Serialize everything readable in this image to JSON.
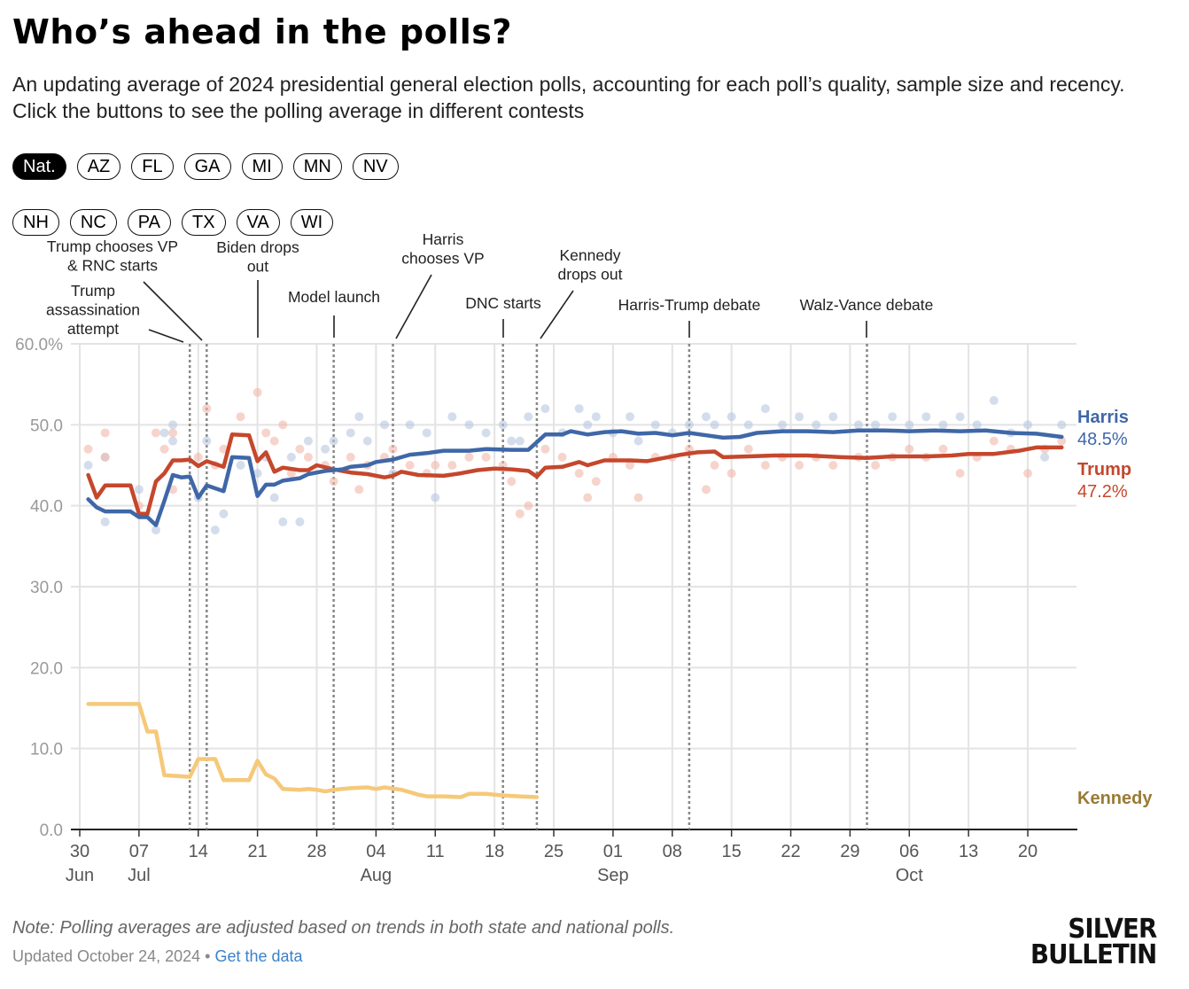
{
  "header": {
    "title": "Who’s ahead in the polls?",
    "subtitle": "An updating average of 2024 presidential general election polls, accounting for each poll’s quality, sample size and recency. Click the buttons to see the polling average in different contests"
  },
  "contest_buttons": {
    "selected": "Nat.",
    "row1": [
      "Nat.",
      "AZ",
      "FL",
      "GA",
      "MI",
      "MN",
      "NV"
    ],
    "row2": [
      "NH",
      "NC",
      "PA",
      "TX",
      "VA",
      "WI"
    ]
  },
  "footer": {
    "note": "Note: Polling averages are adjusted based on trends in both state and national polls.",
    "updated": "Updated October 24, 2024",
    "separator": "•",
    "link": "Get the data",
    "logo_text": "SILVER BULLETIN"
  },
  "chart_data": {
    "type": "line",
    "title": "",
    "xlabel": "",
    "ylabel": "",
    "ylim": [
      0,
      60
    ],
    "xlim": [
      "2024-06-30",
      "2024-10-26"
    ],
    "y_ticks": [
      "0.0",
      "10.0",
      "20.0",
      "30.0",
      "40.0",
      "50.0",
      "60.0%"
    ],
    "y_tick_values": [
      0,
      10,
      20,
      30,
      40,
      50,
      60
    ],
    "x_ticks": [
      {
        "date": "2024-06-30",
        "day": "30",
        "month": "Jun"
      },
      {
        "date": "2024-07-07",
        "day": "07",
        "month": "Jul"
      },
      {
        "date": "2024-07-14",
        "day": "14",
        "month": ""
      },
      {
        "date": "2024-07-21",
        "day": "21",
        "month": ""
      },
      {
        "date": "2024-07-28",
        "day": "28",
        "month": ""
      },
      {
        "date": "2024-08-04",
        "day": "04",
        "month": "Aug"
      },
      {
        "date": "2024-08-11",
        "day": "11",
        "month": ""
      },
      {
        "date": "2024-08-18",
        "day": "18",
        "month": ""
      },
      {
        "date": "2024-08-25",
        "day": "25",
        "month": ""
      },
      {
        "date": "2024-09-01",
        "day": "01",
        "month": "Sep"
      },
      {
        "date": "2024-09-08",
        "day": "08",
        "month": ""
      },
      {
        "date": "2024-09-15",
        "day": "15",
        "month": ""
      },
      {
        "date": "2024-09-22",
        "day": "22",
        "month": ""
      },
      {
        "date": "2024-09-29",
        "day": "29",
        "month": ""
      },
      {
        "date": "2024-10-06",
        "day": "06",
        "month": "Oct"
      },
      {
        "date": "2024-10-13",
        "day": "13",
        "month": ""
      },
      {
        "date": "2024-10-20",
        "day": "20",
        "month": ""
      }
    ],
    "grid": true,
    "colors": {
      "Harris": "#3f67a8",
      "Trump": "#c5472c",
      "Kennedy": "#f5c97a",
      "Kennedy_label": "#9a7a35",
      "Harris_dots": "#b7c7e0",
      "Trump_dots": "#f0b8aa"
    },
    "events": [
      {
        "date": "2024-07-13",
        "label": "Trump assassination attempt"
      },
      {
        "date": "2024-07-15",
        "label": "Trump chooses VP & RNC starts"
      },
      {
        "date": "2024-07-21",
        "label": "Biden drops out"
      },
      {
        "date": "2024-07-30",
        "label": "Model launch"
      },
      {
        "date": "2024-08-06",
        "label": "Harris chooses VP"
      },
      {
        "date": "2024-08-19",
        "label": "DNC starts"
      },
      {
        "date": "2024-08-23",
        "label": "Kennedy drops out"
      },
      {
        "date": "2024-09-10",
        "label": "Harris-Trump debate"
      },
      {
        "date": "2024-10-01",
        "label": "Walz-Vance debate"
      }
    ],
    "series": [
      {
        "name": "Harris",
        "end_label": "48.5%",
        "points": [
          [
            "2024-07-01",
            40.8
          ],
          [
            "2024-07-02",
            39.8
          ],
          [
            "2024-07-03",
            39.3
          ],
          [
            "2024-07-06",
            39.3
          ],
          [
            "2024-07-07",
            38.6
          ],
          [
            "2024-07-08",
            38.6
          ],
          [
            "2024-07-09",
            37.6
          ],
          [
            "2024-07-10",
            40.6
          ],
          [
            "2024-07-11",
            43.8
          ],
          [
            "2024-07-12",
            43.5
          ],
          [
            "2024-07-13",
            43.6
          ],
          [
            "2024-07-14",
            41.0
          ],
          [
            "2024-07-15",
            42.5
          ],
          [
            "2024-07-17",
            41.8
          ],
          [
            "2024-07-18",
            46.0
          ],
          [
            "2024-07-20",
            45.9
          ],
          [
            "2024-07-21",
            41.2
          ],
          [
            "2024-07-22",
            42.6
          ],
          [
            "2024-07-23",
            42.6
          ],
          [
            "2024-07-24",
            43.1
          ],
          [
            "2024-07-26",
            43.4
          ],
          [
            "2024-07-27",
            43.9
          ],
          [
            "2024-07-29",
            44.3
          ],
          [
            "2024-07-31",
            44.5
          ],
          [
            "2024-08-01",
            44.8
          ],
          [
            "2024-08-03",
            45.0
          ],
          [
            "2024-08-04",
            45.4
          ],
          [
            "2024-08-06",
            45.7
          ],
          [
            "2024-08-08",
            46.3
          ],
          [
            "2024-08-10",
            46.5
          ],
          [
            "2024-08-12",
            46.8
          ],
          [
            "2024-08-15",
            46.8
          ],
          [
            "2024-08-17",
            47.0
          ],
          [
            "2024-08-20",
            46.9
          ],
          [
            "2024-08-22",
            46.9
          ],
          [
            "2024-08-24",
            48.8
          ],
          [
            "2024-08-26",
            48.8
          ],
          [
            "2024-08-27",
            49.2
          ],
          [
            "2024-08-29",
            48.8
          ],
          [
            "2024-08-31",
            49.1
          ],
          [
            "2024-09-02",
            49.2
          ],
          [
            "2024-09-04",
            48.9
          ],
          [
            "2024-09-06",
            49.0
          ],
          [
            "2024-09-08",
            48.7
          ],
          [
            "2024-09-10",
            49.0
          ],
          [
            "2024-09-12",
            48.7
          ],
          [
            "2024-09-14",
            48.4
          ],
          [
            "2024-09-16",
            48.5
          ],
          [
            "2024-09-18",
            49.0
          ],
          [
            "2024-09-21",
            49.2
          ],
          [
            "2024-09-24",
            49.2
          ],
          [
            "2024-09-27",
            49.1
          ],
          [
            "2024-09-30",
            49.3
          ],
          [
            "2024-10-03",
            49.3
          ],
          [
            "2024-10-06",
            49.2
          ],
          [
            "2024-10-09",
            49.3
          ],
          [
            "2024-10-12",
            49.2
          ],
          [
            "2024-10-15",
            49.3
          ],
          [
            "2024-10-18",
            49.0
          ],
          [
            "2024-10-21",
            48.9
          ],
          [
            "2024-10-24",
            48.5
          ]
        ]
      },
      {
        "name": "Trump",
        "end_label": "47.2%",
        "points": [
          [
            "2024-07-01",
            43.8
          ],
          [
            "2024-07-02",
            41.0
          ],
          [
            "2024-07-03",
            42.5
          ],
          [
            "2024-07-06",
            42.5
          ],
          [
            "2024-07-07",
            39.0
          ],
          [
            "2024-07-08",
            39.0
          ],
          [
            "2024-07-09",
            43.0
          ],
          [
            "2024-07-10",
            44.0
          ],
          [
            "2024-07-11",
            45.6
          ],
          [
            "2024-07-12",
            45.6
          ],
          [
            "2024-07-13",
            45.7
          ],
          [
            "2024-07-14",
            44.9
          ],
          [
            "2024-07-15",
            45.5
          ],
          [
            "2024-07-17",
            44.8
          ],
          [
            "2024-07-18",
            48.8
          ],
          [
            "2024-07-20",
            48.7
          ],
          [
            "2024-07-21",
            45.5
          ],
          [
            "2024-07-22",
            46.6
          ],
          [
            "2024-07-23",
            44.2
          ],
          [
            "2024-07-24",
            44.7
          ],
          [
            "2024-07-26",
            44.4
          ],
          [
            "2024-07-27",
            44.4
          ],
          [
            "2024-07-28",
            45.0
          ],
          [
            "2024-07-30",
            44.5
          ],
          [
            "2024-08-01",
            44.1
          ],
          [
            "2024-08-03",
            43.9
          ],
          [
            "2024-08-05",
            43.5
          ],
          [
            "2024-08-06",
            43.7
          ],
          [
            "2024-08-07",
            44.2
          ],
          [
            "2024-08-09",
            43.8
          ],
          [
            "2024-08-12",
            43.7
          ],
          [
            "2024-08-14",
            44.0
          ],
          [
            "2024-08-16",
            44.4
          ],
          [
            "2024-08-18",
            44.6
          ],
          [
            "2024-08-20",
            44.5
          ],
          [
            "2024-08-22",
            44.3
          ],
          [
            "2024-08-23",
            43.6
          ],
          [
            "2024-08-24",
            44.7
          ],
          [
            "2024-08-26",
            44.8
          ],
          [
            "2024-08-28",
            45.4
          ],
          [
            "2024-08-29",
            45.0
          ],
          [
            "2024-08-31",
            45.6
          ],
          [
            "2024-09-03",
            45.6
          ],
          [
            "2024-09-05",
            45.5
          ],
          [
            "2024-09-07",
            45.9
          ],
          [
            "2024-09-09",
            46.3
          ],
          [
            "2024-09-11",
            46.6
          ],
          [
            "2024-09-13",
            46.7
          ],
          [
            "2024-09-14",
            46.0
          ],
          [
            "2024-09-17",
            46.1
          ],
          [
            "2024-09-20",
            46.2
          ],
          [
            "2024-09-24",
            46.2
          ],
          [
            "2024-09-28",
            46.0
          ],
          [
            "2024-10-01",
            45.9
          ],
          [
            "2024-10-04",
            46.1
          ],
          [
            "2024-10-08",
            46.1
          ],
          [
            "2024-10-11",
            46.2
          ],
          [
            "2024-10-13",
            46.4
          ],
          [
            "2024-10-16",
            46.4
          ],
          [
            "2024-10-19",
            46.8
          ],
          [
            "2024-10-21",
            47.2
          ],
          [
            "2024-10-23",
            47.2
          ],
          [
            "2024-10-24",
            47.2
          ]
        ]
      },
      {
        "name": "Kennedy",
        "end_label": "",
        "points": [
          [
            "2024-07-01",
            15.5
          ],
          [
            "2024-07-07",
            15.5
          ],
          [
            "2024-07-08",
            12.1
          ],
          [
            "2024-07-09",
            12.1
          ],
          [
            "2024-07-10",
            6.7
          ],
          [
            "2024-07-13",
            6.5
          ],
          [
            "2024-07-14",
            8.7
          ],
          [
            "2024-07-16",
            8.7
          ],
          [
            "2024-07-17",
            6.1
          ],
          [
            "2024-07-20",
            6.1
          ],
          [
            "2024-07-21",
            8.5
          ],
          [
            "2024-07-22",
            6.8
          ],
          [
            "2024-07-23",
            6.3
          ],
          [
            "2024-07-24",
            5.0
          ],
          [
            "2024-07-26",
            4.9
          ],
          [
            "2024-07-27",
            5.0
          ],
          [
            "2024-07-28",
            4.9
          ],
          [
            "2024-07-29",
            4.7
          ],
          [
            "2024-07-30",
            4.9
          ],
          [
            "2024-08-01",
            5.1
          ],
          [
            "2024-08-03",
            5.2
          ],
          [
            "2024-08-04",
            5.0
          ],
          [
            "2024-08-05",
            5.2
          ],
          [
            "2024-08-07",
            4.9
          ],
          [
            "2024-08-09",
            4.3
          ],
          [
            "2024-08-10",
            4.1
          ],
          [
            "2024-08-12",
            4.1
          ],
          [
            "2024-08-14",
            4.0
          ],
          [
            "2024-08-15",
            4.4
          ],
          [
            "2024-08-17",
            4.4
          ],
          [
            "2024-08-19",
            4.2
          ],
          [
            "2024-08-21",
            4.1
          ],
          [
            "2024-08-23",
            4.0
          ]
        ]
      }
    ],
    "polls": [
      [
        "2024-07-01",
        45,
        47
      ],
      [
        "2024-07-03",
        38,
        49
      ],
      [
        "2024-07-03",
        46,
        46
      ],
      [
        "2024-07-07",
        42,
        40
      ],
      [
        "2024-07-09",
        37,
        49
      ],
      [
        "2024-07-10",
        49,
        47
      ],
      [
        "2024-07-11",
        50,
        49
      ],
      [
        "2024-07-11",
        48,
        42
      ],
      [
        "2024-07-14",
        41,
        46
      ],
      [
        "2024-07-15",
        48,
        52
      ],
      [
        "2024-07-16",
        37,
        45
      ],
      [
        "2024-07-17",
        39,
        47
      ],
      [
        "2024-07-19",
        45,
        51
      ],
      [
        "2024-07-21",
        44,
        54
      ],
      [
        "2024-07-22",
        46,
        49
      ],
      [
        "2024-07-23",
        41,
        48
      ],
      [
        "2024-07-24",
        38,
        50
      ],
      [
        "2024-07-25",
        46,
        44
      ],
      [
        "2024-07-26",
        38,
        47
      ],
      [
        "2024-07-27",
        48,
        46
      ],
      [
        "2024-07-29",
        47,
        45
      ],
      [
        "2024-07-30",
        48,
        43
      ],
      [
        "2024-08-01",
        49,
        46
      ],
      [
        "2024-08-02",
        51,
        42
      ],
      [
        "2024-08-03",
        48,
        45
      ],
      [
        "2024-08-05",
        50,
        46
      ],
      [
        "2024-08-06",
        44,
        47
      ],
      [
        "2024-08-08",
        50,
        45
      ],
      [
        "2024-08-10",
        49,
        44
      ],
      [
        "2024-08-11",
        41,
        45
      ],
      [
        "2024-08-13",
        51,
        45
      ],
      [
        "2024-08-15",
        50,
        46
      ],
      [
        "2024-08-17",
        49,
        46
      ],
      [
        "2024-08-19",
        50,
        45
      ],
      [
        "2024-08-20",
        48,
        43
      ],
      [
        "2024-08-21",
        48,
        39
      ],
      [
        "2024-08-22",
        51,
        40
      ],
      [
        "2024-08-24",
        52,
        47
      ],
      [
        "2024-08-26",
        49,
        46
      ],
      [
        "2024-08-28",
        52,
        44
      ],
      [
        "2024-08-29",
        50,
        41
      ],
      [
        "2024-08-30",
        51,
        43
      ],
      [
        "2024-09-01",
        49,
        46
      ],
      [
        "2024-09-03",
        51,
        45
      ],
      [
        "2024-09-04",
        48,
        41
      ],
      [
        "2024-09-06",
        50,
        46
      ],
      [
        "2024-09-08",
        49,
        46
      ],
      [
        "2024-09-10",
        50,
        47
      ],
      [
        "2024-09-12",
        51,
        42
      ],
      [
        "2024-09-13",
        50,
        45
      ],
      [
        "2024-09-15",
        51,
        44
      ],
      [
        "2024-09-17",
        50,
        47
      ],
      [
        "2024-09-19",
        52,
        45
      ],
      [
        "2024-09-21",
        50,
        46
      ],
      [
        "2024-09-23",
        51,
        45
      ],
      [
        "2024-09-25",
        50,
        46
      ],
      [
        "2024-09-27",
        51,
        45
      ],
      [
        "2024-09-30",
        50,
        46
      ],
      [
        "2024-10-02",
        50,
        45
      ],
      [
        "2024-10-04",
        51,
        46
      ],
      [
        "2024-10-06",
        50,
        47
      ],
      [
        "2024-10-08",
        51,
        46
      ],
      [
        "2024-10-10",
        50,
        47
      ],
      [
        "2024-10-12",
        51,
        44
      ],
      [
        "2024-10-14",
        50,
        46
      ],
      [
        "2024-10-16",
        53,
        48
      ],
      [
        "2024-10-18",
        49,
        47
      ],
      [
        "2024-10-20",
        50,
        44
      ],
      [
        "2024-10-22",
        46,
        47
      ],
      [
        "2024-10-24",
        50,
        48
      ]
    ]
  }
}
